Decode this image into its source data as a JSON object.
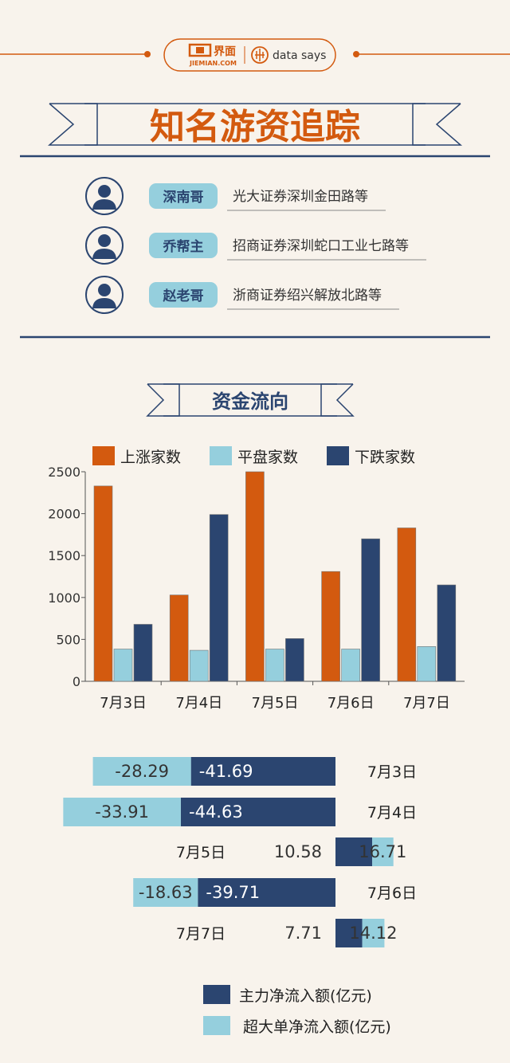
{
  "header": {
    "brand_cn": "界面",
    "brand_en": "JIEMIAN.COM",
    "partner": "data says",
    "title": "知名游资追踪"
  },
  "traders": [
    {
      "name": "深南哥",
      "desk": "光大证券深圳金田路等"
    },
    {
      "name": "乔帮主",
      "desk": "招商证券深圳蛇口工业七路等"
    },
    {
      "name": "赵老哥",
      "desk": "浙商证券绍兴解放北路等"
    }
  ],
  "section_title": "资金流向",
  "colors": {
    "up": "#d35a0f",
    "flat": "#95cfdd",
    "down": "#2b4570",
    "main": "#2b4570",
    "super": "#95cfdd",
    "rule": "#2b4570",
    "orange": "#d35a0f",
    "badge": "#95cfdd"
  },
  "chart_data": [
    {
      "type": "bar",
      "categories": [
        "7月3日",
        "7月4日",
        "7月5日",
        "7月6日",
        "7月7日"
      ],
      "series": [
        {
          "name": "上涨家数",
          "values": [
            2330,
            1030,
            2500,
            1310,
            1830
          ]
        },
        {
          "name": "平盘家数",
          "values": [
            385,
            370,
            385,
            385,
            415
          ]
        },
        {
          "name": "下跌家数",
          "values": [
            680,
            1990,
            510,
            1700,
            1150
          ]
        }
      ],
      "ylim": [
        0,
        2500
      ],
      "yticks": [
        "0",
        "500",
        "1000",
        "1500",
        "2000",
        "2500"
      ],
      "legend": "top"
    },
    {
      "type": "bar",
      "orientation": "horizontal",
      "categories": [
        "7月3日",
        "7月4日",
        "7月5日",
        "7月6日",
        "7月7日"
      ],
      "series": [
        {
          "name": "主力净流入额(亿元)",
          "values": [
            -41.69,
            -44.63,
            10.58,
            -39.71,
            7.71
          ]
        },
        {
          "name": "超大单净流入额(亿元)",
          "values": [
            -28.29,
            -33.91,
            16.71,
            -18.63,
            14.12
          ]
        }
      ],
      "value_labels": {
        "main": [
          "-41.69",
          "-44.63",
          "10.58",
          "-39.71",
          "7.71"
        ],
        "super": [
          "-28.29",
          "-33.91",
          "16.71",
          "-18.63",
          "14.12"
        ]
      },
      "legend": "bottom"
    }
  ]
}
